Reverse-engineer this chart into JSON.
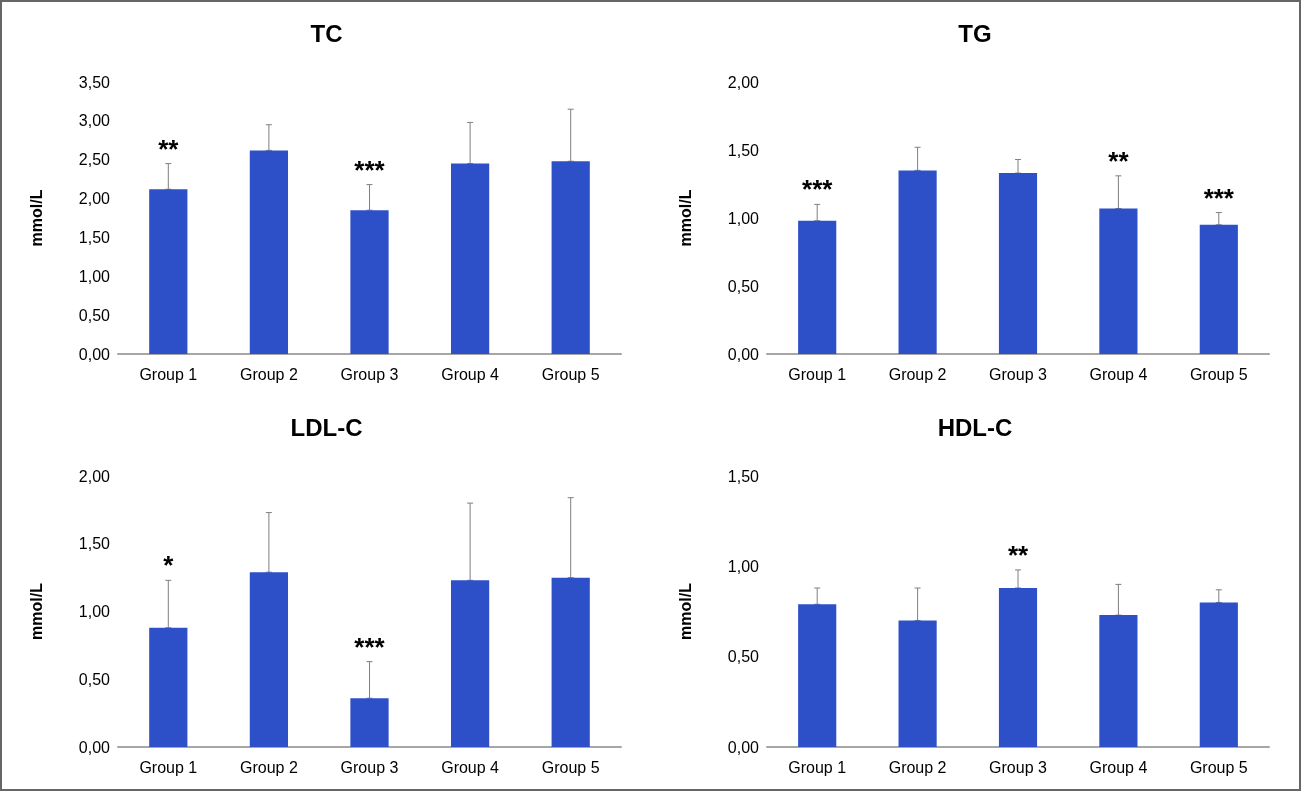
{
  "chart_data": [
    {
      "type": "bar",
      "title": "TC",
      "ylabel": "mmol/L",
      "categories": [
        "Group 1",
        "Group 2",
        "Group 3",
        "Group 4",
        "Group 5"
      ],
      "values": [
        2.12,
        2.62,
        1.85,
        2.45,
        2.48
      ],
      "color": "#2d4fc8",
      "errors": [
        [
          2.12,
          2.45
        ],
        [
          2.62,
          2.95
        ],
        [
          1.85,
          2.18
        ],
        [
          2.45,
          2.98
        ],
        [
          2.48,
          3.15
        ]
      ],
      "ylim": [
        0,
        3.5
      ],
      "yticks": [
        {
          "value": 0,
          "label": "0,00"
        },
        {
          "value": 0.5,
          "label": "0,50"
        },
        {
          "value": 1,
          "label": "1,00"
        },
        {
          "value": 1.5,
          "label": "1,50"
        },
        {
          "value": 2,
          "label": "2,00"
        },
        {
          "value": 2.5,
          "label": "2,50"
        },
        {
          "value": 3,
          "label": "3,00"
        },
        {
          "value": 3.5,
          "label": "3,50"
        }
      ],
      "annotations": [
        {
          "text": "**",
          "x": "Group 1",
          "y": 2.45
        },
        {
          "text": "***",
          "x": "Group 3",
          "y": 2.18
        }
      ],
      "grid": false
    },
    {
      "type": "bar",
      "title": "TG",
      "ylabel": "mmol/L",
      "categories": [
        "Group 1",
        "Group 2",
        "Group 3",
        "Group 4",
        "Group 5"
      ],
      "values": [
        0.98,
        1.35,
        1.33,
        1.07,
        0.95
      ],
      "color": "#2d4fc8",
      "errors": [
        [
          0.98,
          1.1
        ],
        [
          1.35,
          1.52
        ],
        [
          1.33,
          1.43
        ],
        [
          1.07,
          1.31
        ],
        [
          0.95,
          1.04
        ]
      ],
      "ylim": [
        0,
        2
      ],
      "yticks": [
        {
          "value": 0,
          "label": "0,00"
        },
        {
          "value": 0.5,
          "label": "0,50"
        },
        {
          "value": 1,
          "label": "1,00"
        },
        {
          "value": 1.5,
          "label": "1,50"
        },
        {
          "value": 2,
          "label": "2,00"
        }
      ],
      "annotations": [
        {
          "text": "***",
          "x": "Group 1",
          "y": 1.1
        },
        {
          "text": "**",
          "x": "Group 4",
          "y": 1.31
        },
        {
          "text": "***",
          "x": "Group 5",
          "y": 1.04
        }
      ],
      "grid": false
    },
    {
      "type": "bar",
      "title": "LDL-C",
      "ylabel": "mmol/L",
      "categories": [
        "Group 1",
        "Group 2",
        "Group 3",
        "Group 4",
        "Group 5"
      ],
      "values": [
        0.88,
        1.29,
        0.36,
        1.23,
        1.25
      ],
      "color": "#2d4fc8",
      "errors": [
        [
          0.88,
          1.23
        ],
        [
          1.29,
          1.73
        ],
        [
          0.36,
          0.63
        ],
        [
          1.23,
          1.8
        ],
        [
          1.25,
          1.84
        ]
      ],
      "ylim": [
        0,
        2
      ],
      "yticks": [
        {
          "value": 0,
          "label": "0,00"
        },
        {
          "value": 0.5,
          "label": "0,50"
        },
        {
          "value": 1,
          "label": "1,00"
        },
        {
          "value": 1.5,
          "label": "1,50"
        },
        {
          "value": 2,
          "label": "2,00"
        }
      ],
      "annotations": [
        {
          "text": "*",
          "x": "Group 1",
          "y": 1.23
        },
        {
          "text": "***",
          "x": "Group 3",
          "y": 0.63
        }
      ],
      "grid": false
    },
    {
      "type": "bar",
      "title": "HDL-C",
      "ylabel": "mmol/L",
      "categories": [
        "Group 1",
        "Group 2",
        "Group 3",
        "Group 4",
        "Group 5"
      ],
      "values": [
        0.79,
        0.7,
        0.88,
        0.73,
        0.8
      ],
      "color": "#2d4fc8",
      "errors": [
        [
          0.79,
          0.88
        ],
        [
          0.7,
          0.88
        ],
        [
          0.88,
          0.98
        ],
        [
          0.73,
          0.9
        ],
        [
          0.8,
          0.87
        ]
      ],
      "ylim": [
        0,
        1.5
      ],
      "yticks": [
        {
          "value": 0,
          "label": "0,00"
        },
        {
          "value": 0.5,
          "label": "0,50"
        },
        {
          "value": 1,
          "label": "1,00"
        },
        {
          "value": 1.5,
          "label": "1,50"
        }
      ],
      "annotations": [
        {
          "text": "**",
          "x": "Group 3",
          "y": 0.98
        }
      ],
      "grid": false
    }
  ]
}
